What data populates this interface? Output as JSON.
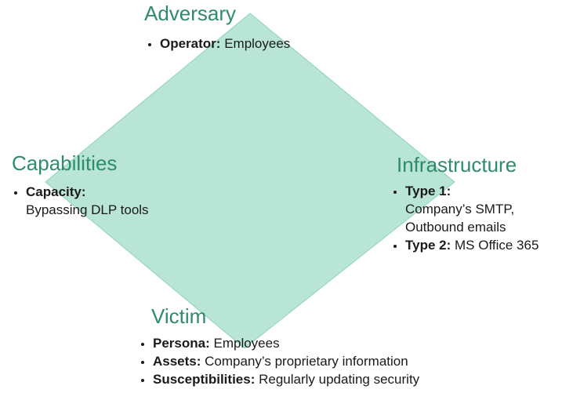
{
  "colors": {
    "diamond_fill": "#b8e5d5",
    "diamond_stroke": "#8fd3bb",
    "heading": "#2e8b6e",
    "text": "#1a1a1a"
  },
  "adversary": {
    "title": "Adversary",
    "items": [
      {
        "label": "Operator:",
        "value": "Employees"
      }
    ]
  },
  "capabilities": {
    "title": "Capabilities",
    "items": [
      {
        "label": "Capacity:",
        "value": "Bypassing DLP tools"
      }
    ]
  },
  "infrastructure": {
    "title": "Infrastructure",
    "items": [
      {
        "label": "Type 1:",
        "value_line1": "Company’s SMTP,",
        "value_line2": "Outbound emails"
      },
      {
        "label": "Type 2:",
        "value": "MS Office 365"
      }
    ]
  },
  "victim": {
    "title": "Victim",
    "items": [
      {
        "label": "Persona:",
        "value": "Employees"
      },
      {
        "label": "Assets:",
        "value": "Company’s proprietary information"
      },
      {
        "label": "Susceptibilities:",
        "value": "Regularly updating security"
      }
    ]
  }
}
